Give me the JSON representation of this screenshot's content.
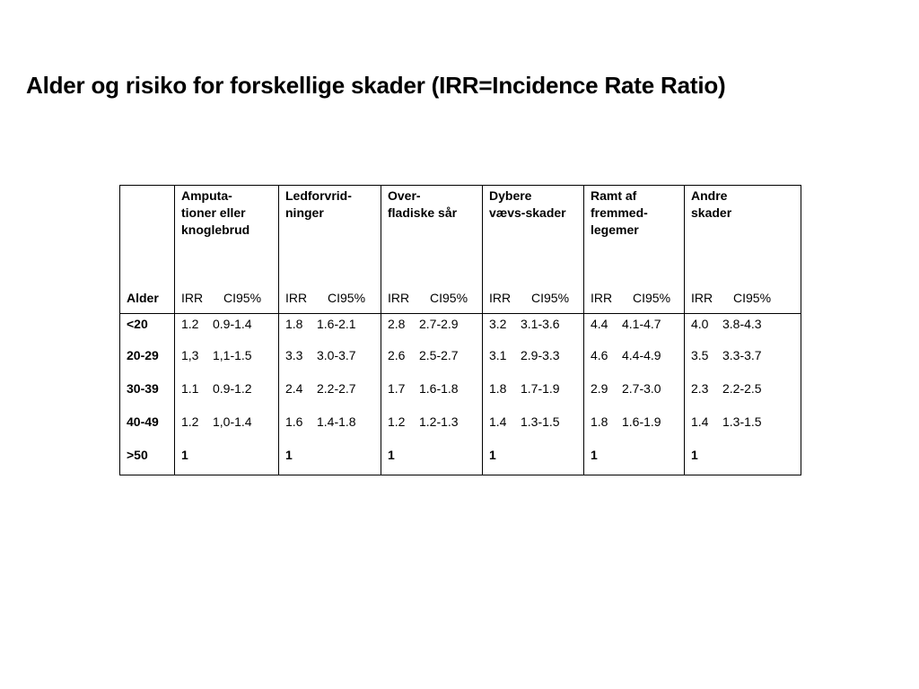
{
  "title": "Alder og risiko for forskellige skader (IRR=Incidence Rate Ratio)",
  "table": {
    "age_header": "Alder",
    "sub_irr": "IRR",
    "sub_ci": "CI95%",
    "categories": [
      "Amputa-\ntioner eller\nknoglebrud",
      "Ledforvrid-\nninger",
      "Over-\nfladiske sår",
      "Dybere\nvævs-skader",
      "Ramt af\nfremmed-\nlegemer",
      "Andre\nskader"
    ],
    "rows": [
      {
        "age": "<20",
        "cells": [
          {
            "irr": "1.2",
            "ci": "0.9-1.4"
          },
          {
            "irr": "1.8",
            "ci": "1.6-2.1"
          },
          {
            "irr": "2.8",
            "ci": "2.7-2.9"
          },
          {
            "irr": "3.2",
            "ci": "3.1-3.6"
          },
          {
            "irr": "4.4",
            "ci": "4.1-4.7"
          },
          {
            "irr": "4.0",
            "ci": "3.8-4.3"
          }
        ]
      },
      {
        "age": "20-29",
        "cells": [
          {
            "irr": "1,3",
            "ci": "1,1-1.5"
          },
          {
            "irr": "3.3",
            "ci": "3.0-3.7"
          },
          {
            "irr": "2.6",
            "ci": "2.5-2.7"
          },
          {
            "irr": "3.1",
            "ci": "2.9-3.3"
          },
          {
            "irr": "4.6",
            "ci": "4.4-4.9"
          },
          {
            "irr": "3.5",
            "ci": "3.3-3.7"
          }
        ]
      },
      {
        "age": "30-39",
        "cells": [
          {
            "irr": "1.1",
            "ci": "0.9-1.2"
          },
          {
            "irr": "2.4",
            "ci": "2.2-2.7"
          },
          {
            "irr": "1.7",
            "ci": "1.6-1.8"
          },
          {
            "irr": "1.8",
            "ci": "1.7-1.9"
          },
          {
            "irr": "2.9",
            "ci": "2.7-3.0"
          },
          {
            "irr": "2.3",
            "ci": "2.2-2.5"
          }
        ]
      },
      {
        "age": "40-49",
        "cells": [
          {
            "irr": "1.2",
            "ci": "1,0-1.4"
          },
          {
            "irr": "1.6",
            "ci": "1.4-1.8"
          },
          {
            "irr": "1.2",
            "ci": "1.2-1.3"
          },
          {
            "irr": "1.4",
            "ci": "1.3-1.5"
          },
          {
            "irr": "1.8",
            "ci": "1.6-1.9"
          },
          {
            "irr": "1.4",
            "ci": "1.3-1.5"
          }
        ]
      },
      {
        "age": ">50",
        "reference": "1"
      }
    ]
  }
}
